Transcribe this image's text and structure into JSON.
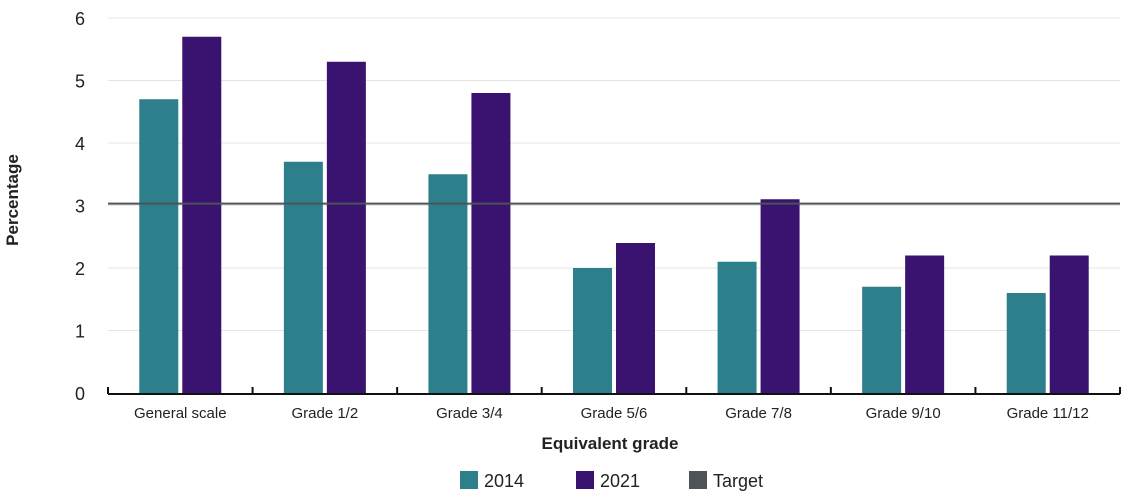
{
  "chart_data": {
    "type": "bar",
    "categories": [
      "General scale",
      "Grade 1/2",
      "Grade 3/4",
      "Grade 5/6",
      "Grade 7/8",
      "Grade 9/10",
      "Grade 11/12"
    ],
    "series": [
      {
        "name": "2014",
        "color": "#2e7f8c",
        "values": [
          4.7,
          3.7,
          3.5,
          2.0,
          2.1,
          1.7,
          1.6
        ]
      },
      {
        "name": "2021",
        "color": "#3a1270",
        "values": [
          5.7,
          5.3,
          4.8,
          2.4,
          3.1,
          2.2,
          2.2
        ]
      }
    ],
    "target": {
      "name": "Target",
      "color": "#4d5356",
      "value": 3.03
    },
    "xlabel": "Equivalent grade",
    "ylabel": "Percentage",
    "ylim": [
      0,
      6
    ],
    "yticks": [
      0,
      1,
      2,
      3,
      4,
      5,
      6
    ],
    "grid": true,
    "legend_position": "bottom"
  }
}
